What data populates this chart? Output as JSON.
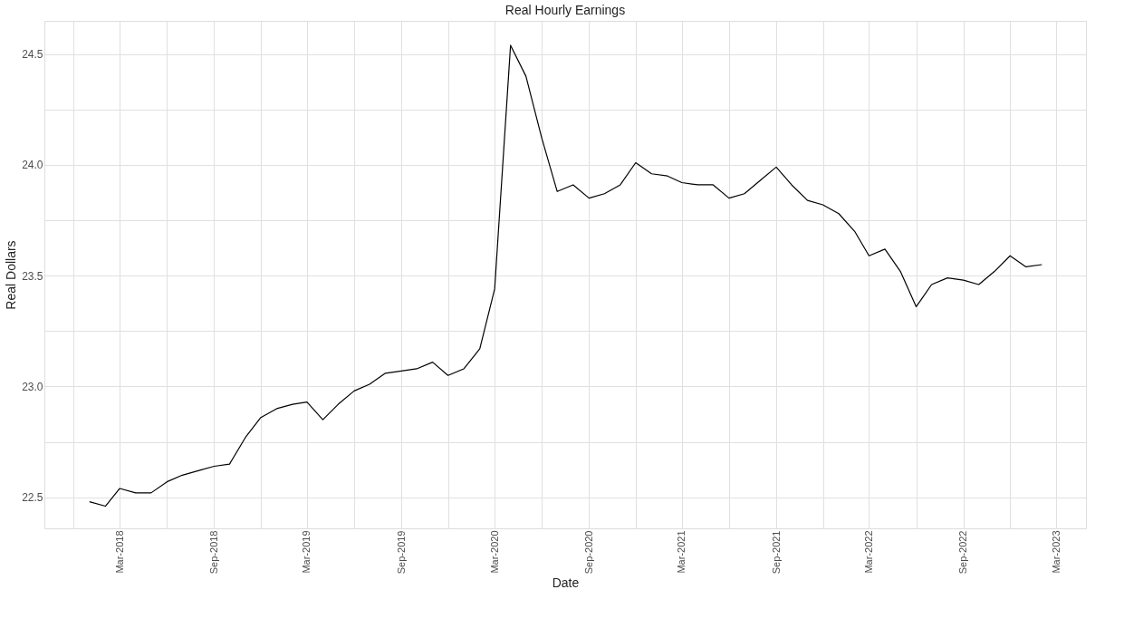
{
  "chart_data": {
    "type": "line",
    "title": "Real Hourly Earnings",
    "xlabel": "Date",
    "ylabel": "Real Dollars",
    "x": [
      "2018-01",
      "2018-02",
      "2018-03",
      "2018-04",
      "2018-05",
      "2018-06",
      "2018-07",
      "2018-08",
      "2018-09",
      "2018-10",
      "2018-11",
      "2018-12",
      "2019-01",
      "2019-02",
      "2019-03",
      "2019-04",
      "2019-05",
      "2019-06",
      "2019-07",
      "2019-08",
      "2019-09",
      "2019-10",
      "2019-11",
      "2019-12",
      "2020-01",
      "2020-02",
      "2020-03",
      "2020-04",
      "2020-05",
      "2020-06",
      "2020-07",
      "2020-08",
      "2020-09",
      "2020-10",
      "2020-11",
      "2020-12",
      "2021-01",
      "2021-02",
      "2021-03",
      "2021-04",
      "2021-05",
      "2021-06",
      "2021-07",
      "2021-08",
      "2021-09",
      "2021-10",
      "2021-11",
      "2021-12",
      "2022-01",
      "2022-02",
      "2022-03",
      "2022-04",
      "2022-05",
      "2022-06",
      "2022-07",
      "2022-08",
      "2022-09",
      "2022-10",
      "2022-11",
      "2022-12",
      "2023-01",
      "2023-02"
    ],
    "series": [
      {
        "color": "#000000",
        "values": [
          22.48,
          22.46,
          22.54,
          22.52,
          22.52,
          22.57,
          22.6,
          22.62,
          22.64,
          22.65,
          22.77,
          22.86,
          22.9,
          22.92,
          22.93,
          22.85,
          22.92,
          22.98,
          23.01,
          23.06,
          23.07,
          23.08,
          23.11,
          23.05,
          23.08,
          23.17,
          23.44,
          24.54,
          24.4,
          24.12,
          23.88,
          23.91,
          23.85,
          23.87,
          23.91,
          24.01,
          23.96,
          23.95,
          23.92,
          23.91,
          23.91,
          23.85,
          23.87,
          23.93,
          23.99,
          23.91,
          23.84,
          23.82,
          23.78,
          23.7,
          23.59,
          23.62,
          23.52,
          23.36,
          23.46,
          23.49,
          23.48,
          23.46,
          23.52,
          23.59,
          23.54,
          23.55
        ]
      }
    ],
    "xlim": [
      "2017-10-05",
      "2023-04-28"
    ],
    "xticks": [
      {
        "value": "2017-12",
        "label": null
      },
      {
        "value": "2018-03",
        "label": "Mar-2018"
      },
      {
        "value": "2018-06",
        "label": null
      },
      {
        "value": "2018-09",
        "label": "Sep-2018"
      },
      {
        "value": "2018-12",
        "label": null
      },
      {
        "value": "2019-03",
        "label": "Mar-2019"
      },
      {
        "value": "2019-06",
        "label": null
      },
      {
        "value": "2019-09",
        "label": "Sep-2019"
      },
      {
        "value": "2019-12",
        "label": null
      },
      {
        "value": "2020-03",
        "label": "Mar-2020"
      },
      {
        "value": "2020-06",
        "label": null
      },
      {
        "value": "2020-09",
        "label": "Sep-2020"
      },
      {
        "value": "2020-12",
        "label": null
      },
      {
        "value": "2021-03",
        "label": "Mar-2021"
      },
      {
        "value": "2021-06",
        "label": null
      },
      {
        "value": "2021-09",
        "label": "Sep-2021"
      },
      {
        "value": "2021-12",
        "label": null
      },
      {
        "value": "2022-03",
        "label": "Mar-2022"
      },
      {
        "value": "2022-06",
        "label": null
      },
      {
        "value": "2022-09",
        "label": "Sep-2022"
      },
      {
        "value": "2022-12",
        "label": null
      },
      {
        "value": "2023-03",
        "label": "Mar-2023"
      }
    ],
    "ylim": [
      22.36,
      24.65
    ],
    "yticks": [
      {
        "value": 22.5,
        "label": "22.5"
      },
      {
        "value": 22.75,
        "label": null
      },
      {
        "value": 23,
        "label": "23.0"
      },
      {
        "value": 23.25,
        "label": null
      },
      {
        "value": 23.5,
        "label": "23.5"
      },
      {
        "value": 23.75,
        "label": null
      },
      {
        "value": 24,
        "label": "24.0"
      },
      {
        "value": 24.25,
        "label": null
      },
      {
        "value": 24.5,
        "label": "24.5"
      }
    ],
    "grid": true,
    "marker": "none",
    "line_style": "solid"
  }
}
